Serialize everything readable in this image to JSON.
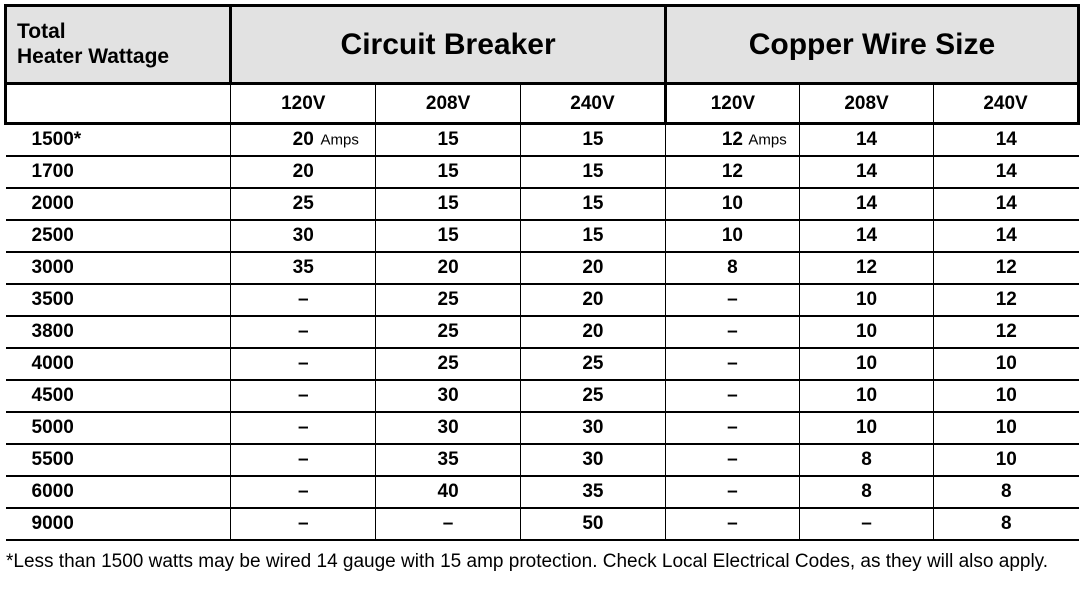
{
  "header": {
    "wattage_line1": "Total",
    "wattage_line2": "Heater Wattage",
    "breaker": "Circuit Breaker",
    "wire": "Copper Wire Size"
  },
  "voltages": [
    "120V",
    "208V",
    "240V",
    "120V",
    "208V",
    "240V"
  ],
  "amps_label": "Amps",
  "rows": [
    {
      "w": "1500*",
      "v": [
        "20",
        "15",
        "15",
        "12",
        "14",
        "14"
      ]
    },
    {
      "w": "1700",
      "v": [
        "20",
        "15",
        "15",
        "12",
        "14",
        "14"
      ]
    },
    {
      "w": "2000",
      "v": [
        "25",
        "15",
        "15",
        "10",
        "14",
        "14"
      ]
    },
    {
      "w": "2500",
      "v": [
        "30",
        "15",
        "15",
        "10",
        "14",
        "14"
      ]
    },
    {
      "w": "3000",
      "v": [
        "35",
        "20",
        "20",
        "8",
        "12",
        "12"
      ]
    },
    {
      "w": "3500",
      "v": [
        "–",
        "25",
        "20",
        "–",
        "10",
        "12"
      ]
    },
    {
      "w": "3800",
      "v": [
        "–",
        "25",
        "20",
        "–",
        "10",
        "12"
      ]
    },
    {
      "w": "4000",
      "v": [
        "–",
        "25",
        "25",
        "–",
        "10",
        "10"
      ]
    },
    {
      "w": "4500",
      "v": [
        "–",
        "30",
        "25",
        "–",
        "10",
        "10"
      ]
    },
    {
      "w": "5000",
      "v": [
        "–",
        "30",
        "30",
        "–",
        "10",
        "10"
      ]
    },
    {
      "w": "5500",
      "v": [
        "–",
        "35",
        "30",
        "–",
        "8",
        "10"
      ]
    },
    {
      "w": "6000",
      "v": [
        "–",
        "40",
        "35",
        "–",
        "8",
        "8"
      ]
    },
    {
      "w": "9000",
      "v": [
        "–",
        "–",
        "50",
        "–",
        "–",
        "8"
      ]
    }
  ],
  "col_widths_pct": [
    21,
    13.5,
    13.5,
    13.5,
    12.5,
    12.5,
    13.5
  ],
  "footnote": "*Less than 1500 watts may be wired 14 gauge with 15 amp protection. Check Local Electrical Codes, as they will also apply.",
  "colors": {
    "header_bg": "#e2e2e2",
    "border": "#000000",
    "text": "#000000",
    "bg": "#ffffff"
  }
}
